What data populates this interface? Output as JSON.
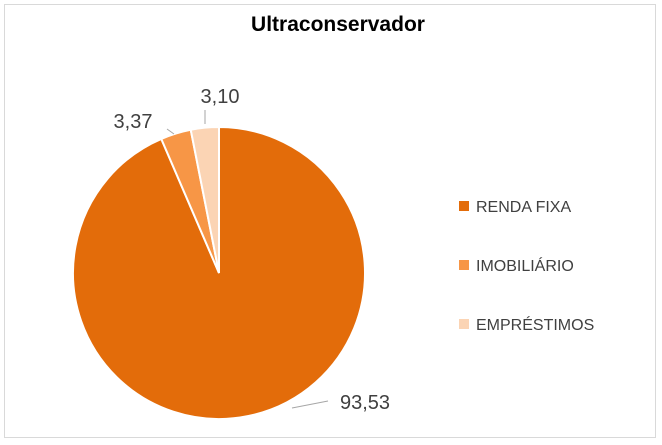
{
  "chart_data": {
    "type": "pie",
    "title": "Ultraconservador",
    "legend_position": "right",
    "slices": [
      {
        "name": "RENDA FIXA",
        "value": 93.53,
        "label": "93,53",
        "color": "#E36C0A"
      },
      {
        "name": "IMOBILIÁRIO",
        "value": 3.37,
        "label": "3,37",
        "color": "#F79646"
      },
      {
        "name": "EMPRÉSTIMOS",
        "value": 3.1,
        "label": "3,10",
        "color": "#FBD4B4"
      }
    ]
  }
}
